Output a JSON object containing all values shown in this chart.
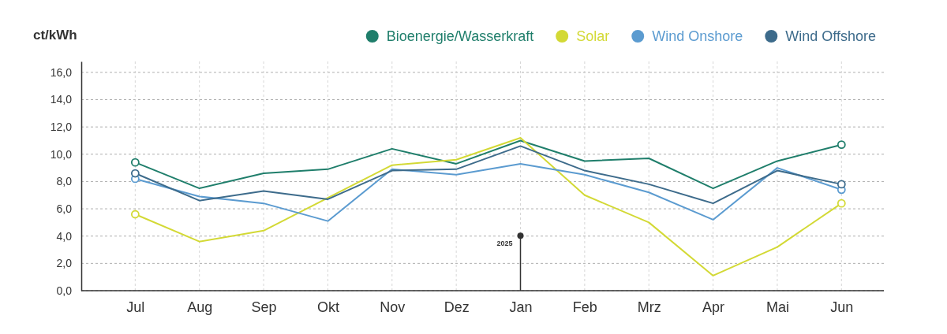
{
  "chart_data": {
    "type": "line",
    "ylabel": "ct/kWh",
    "categories": [
      "Jul",
      "Aug",
      "Sep",
      "Okt",
      "Nov",
      "Dez",
      "Jan",
      "Feb",
      "Mrz",
      "Apr",
      "Mai",
      "Jun"
    ],
    "series": [
      {
        "name": "Bioenergie/Wasserkraft",
        "color": "#1f7e6b",
        "values": [
          9.4,
          7.5,
          8.6,
          8.9,
          10.4,
          9.3,
          11.0,
          9.5,
          9.7,
          7.5,
          9.5,
          10.7
        ]
      },
      {
        "name": "Solar",
        "color": "#d3d935",
        "values": [
          5.6,
          3.6,
          4.4,
          6.8,
          9.2,
          9.6,
          11.2,
          7.0,
          5.0,
          1.1,
          3.2,
          6.4
        ]
      },
      {
        "name": "Wind Onshore",
        "color": "#5b9bd0",
        "values": [
          8.2,
          6.9,
          6.4,
          5.1,
          8.9,
          8.5,
          9.3,
          8.5,
          7.2,
          5.2,
          9.0,
          7.4
        ]
      },
      {
        "name": "Wind Offshore",
        "color": "#3d6b8b",
        "values": [
          8.6,
          6.6,
          7.3,
          6.7,
          8.8,
          8.9,
          10.6,
          8.8,
          7.8,
          6.4,
          8.8,
          7.8
        ]
      }
    ],
    "ylim": [
      0,
      16.8
    ],
    "yticks": [
      {
        "value": 0,
        "label": "0,0"
      },
      {
        "value": 2,
        "label": "2,0"
      },
      {
        "value": 4,
        "label": "4,0"
      },
      {
        "value": 6,
        "label": "6,0"
      },
      {
        "value": 8,
        "label": "8,0"
      },
      {
        "value": 10,
        "label": "10,0"
      },
      {
        "value": 12,
        "label": "12,0"
      },
      {
        "value": 14,
        "label": "14,0"
      },
      {
        "value": 16,
        "label": "16,0"
      }
    ],
    "grid": true,
    "legend": "top right",
    "line_style": "solid",
    "ref_lines": [
      {
        "axis": "x",
        "value": "Jan",
        "label": "2025",
        "color": "#333333"
      }
    ]
  }
}
